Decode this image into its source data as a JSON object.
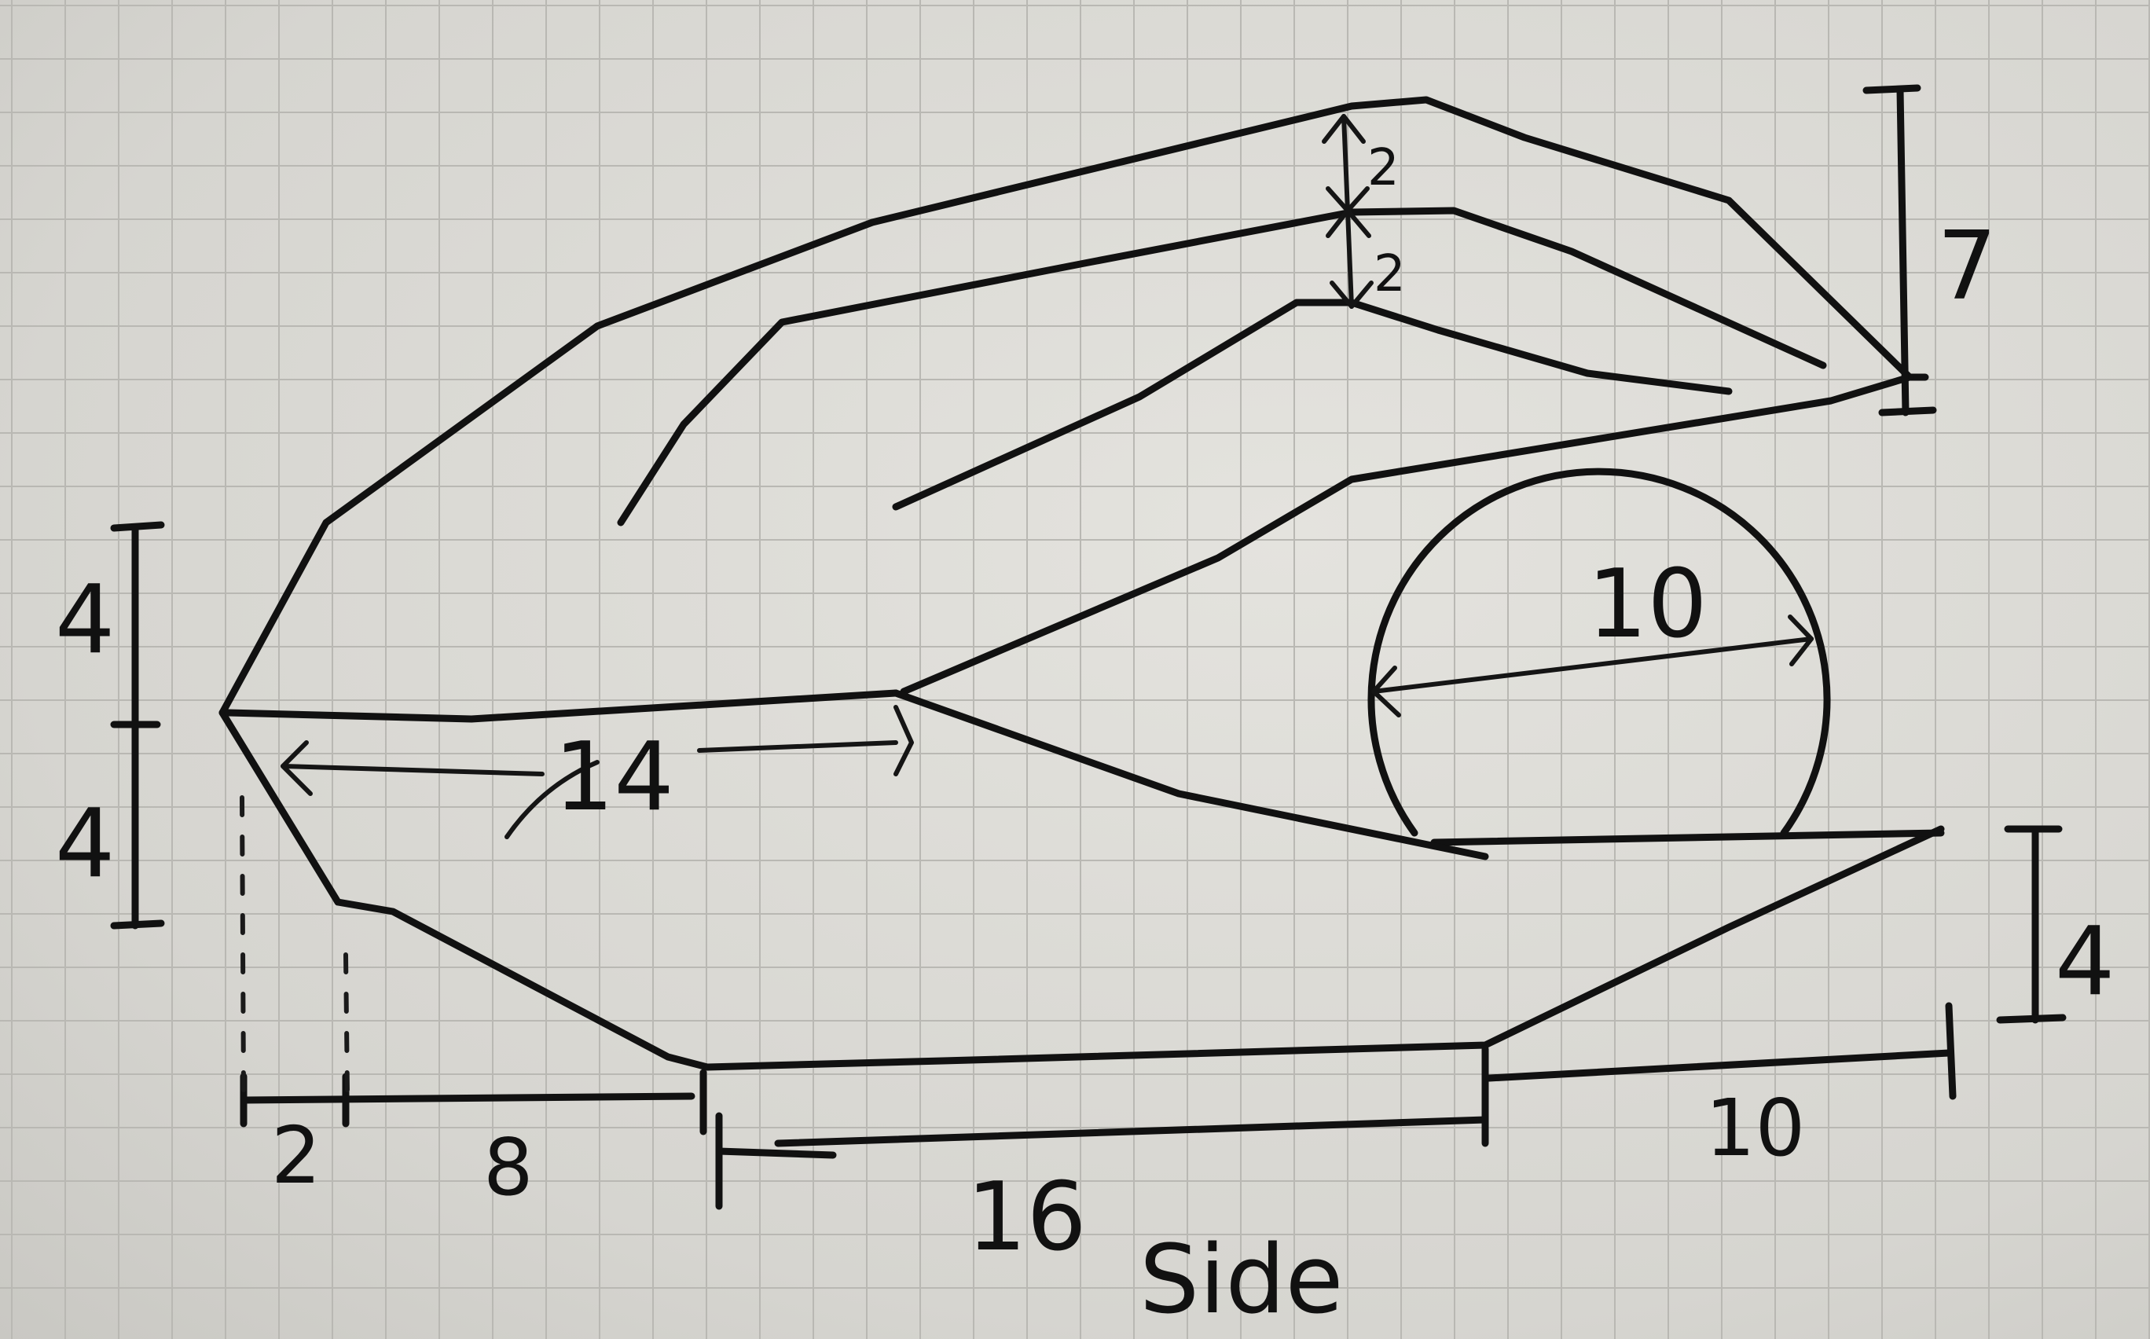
{
  "diagram": {
    "title": "Side",
    "view": "side",
    "dimensions": {
      "left_upper_height": "4",
      "left_lower_height": "4",
      "inner_length": "14",
      "circle_diameter": "10",
      "upper_gap_top": "2",
      "upper_gap_bottom": "2",
      "right_tail_height": "7",
      "right_bottom_height": "4",
      "bottom_seg_1": "2",
      "bottom_seg_2": "8",
      "bottom_seg_3": "16",
      "bottom_seg_4": "10"
    }
  },
  "colors": {
    "paper": "#dcdbd6",
    "grid": "#b9b8b3",
    "ink": "#111111"
  }
}
